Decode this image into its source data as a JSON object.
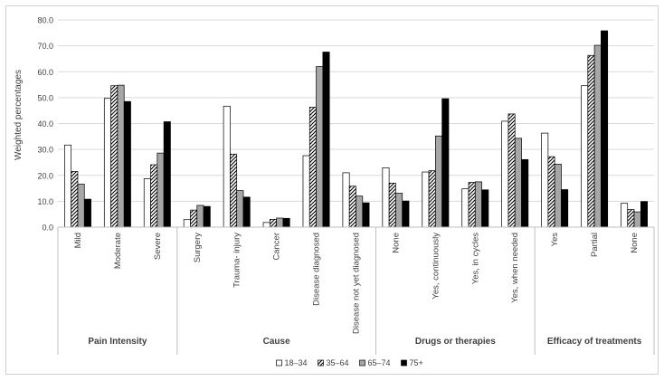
{
  "chart_data": {
    "type": "bar",
    "title": "",
    "xlabel": "",
    "ylabel": "Weighted percentages",
    "ylim": [
      0,
      80
    ],
    "yticks": [
      "0.0",
      "10.0",
      "20.0",
      "30.0",
      "40.0",
      "50.0",
      "60.0",
      "70.0",
      "80.0"
    ],
    "grid": true,
    "legend_position": "bottom",
    "categories": [
      "Mild",
      "Moderate",
      "Severe",
      "Surgery",
      "Trauma- injury",
      "Cancer",
      "Disease diagnosed",
      "Disease not yet diagnosed",
      "None",
      "Yes, continuously",
      "Yes, in cycles",
      "Yes, when needed",
      "Yes",
      "Partial",
      "None"
    ],
    "groups": [
      {
        "label": "Pain Intensity",
        "start": 0,
        "count": 3
      },
      {
        "label": "Cause",
        "start": 3,
        "count": 5
      },
      {
        "label": "Drugs or therapies",
        "start": 8,
        "count": 4
      },
      {
        "label": "Efficacy of treatments",
        "start": 12,
        "count": 3
      }
    ],
    "series": [
      {
        "name": "18–34",
        "pattern": "white",
        "values": [
          31.7,
          49.7,
          18.7,
          2.9,
          46.7,
          1.8,
          27.6,
          21.0,
          22.9,
          21.3,
          14.8,
          40.9,
          36.3,
          54.6,
          9.2
        ]
      },
      {
        "name": "35–64",
        "pattern": "hatch",
        "values": [
          21.5,
          54.6,
          24.1,
          6.6,
          28.2,
          3.0,
          46.3,
          15.8,
          17.0,
          21.8,
          17.3,
          43.7,
          27.2,
          66.3,
          6.8
        ]
      },
      {
        "name": "65–74",
        "pattern": "gray",
        "values": [
          16.6,
          54.8,
          28.6,
          8.4,
          14.1,
          3.5,
          62.0,
          12.0,
          13.1,
          35.2,
          17.5,
          34.3,
          24.3,
          70.2,
          5.9
        ]
      },
      {
        "name": "75+",
        "pattern": "black",
        "values": [
          10.8,
          48.5,
          40.7,
          8.0,
          11.6,
          3.4,
          67.6,
          9.4,
          10.1,
          49.6,
          14.4,
          26.1,
          14.5,
          75.8,
          9.9
        ]
      }
    ]
  }
}
